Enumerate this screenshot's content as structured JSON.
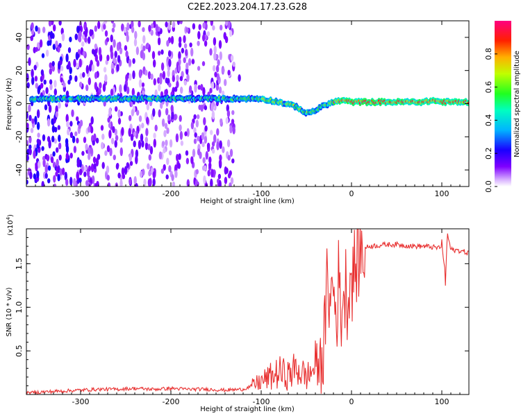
{
  "title": "C2E2.2023.204.17.23.G28",
  "chart_data": [
    {
      "type": "heatmap",
      "xlabel": "Height of straight line (km)",
      "ylabel": "Frequency (Hz)",
      "xlim": [
        -360,
        130
      ],
      "ylim": [
        -50,
        50
      ],
      "x_ticks": [
        -300,
        -200,
        -100,
        0,
        100
      ],
      "y_ticks": [
        -40,
        -20,
        0,
        20,
        40
      ],
      "colorbar": {
        "label": "Normalized spectral amplitude",
        "range": [
          0,
          1
        ],
        "ticks": [
          "0.0",
          "0.2",
          "0.4",
          "0.6",
          "0.8"
        ],
        "colors": [
          "#ffffff",
          "#7f00ff",
          "#0000ff",
          "#00c8ff",
          "#00ff80",
          "#80ff00",
          "#ffd000",
          "#ff0000",
          "#ff0080"
        ]
      },
      "ridge": {
        "x": [
          -360,
          -300,
          -200,
          -130,
          -100,
          -80,
          -60,
          -50,
          -40,
          -30,
          -20,
          -10,
          0,
          20,
          40,
          60,
          80,
          90,
          100,
          130
        ],
        "frequency": [
          3,
          3,
          3,
          3,
          3,
          1,
          -2,
          -6,
          -4,
          -1,
          1,
          2,
          1,
          1,
          1,
          1,
          1,
          2,
          1,
          1
        ]
      }
    },
    {
      "type": "line",
      "xlabel": "Height of straight line (km)",
      "ylabel": "SNR (10 * v/v)",
      "multiplier": "(x10",
      "multiplier_exp": "4",
      "multiplier_close": ")",
      "xlim": [
        -360,
        130
      ],
      "ylim": [
        0,
        1.9
      ],
      "x_ticks": [
        -300,
        -200,
        -100,
        0,
        100
      ],
      "y_ticks": [
        "0.5",
        "1.0",
        "1.5"
      ],
      "series": [
        {
          "color": "#e83030",
          "x": [
            -360,
            -340,
            -320,
            -300,
            -280,
            -260,
            -240,
            -220,
            -200,
            -180,
            -160,
            -140,
            -120,
            -110,
            -100,
            -90,
            -80,
            -70,
            -60,
            -50,
            -45,
            -40,
            -35,
            -30,
            -28,
            -26,
            -24,
            -22,
            -20,
            -18,
            -16,
            -14,
            -12,
            -10,
            -8,
            -6,
            -4,
            -2,
            0,
            5,
            10,
            15,
            20,
            30,
            40,
            50,
            60,
            70,
            80,
            90,
            95,
            100,
            102,
            104,
            106,
            110,
            120,
            130
          ],
          "y": [
            0.02,
            0.03,
            0.04,
            0.05,
            0.06,
            0.06,
            0.07,
            0.06,
            0.07,
            0.06,
            0.06,
            0.05,
            0.06,
            0.1,
            0.15,
            0.2,
            0.25,
            0.22,
            0.3,
            0.2,
            0.25,
            0.35,
            0.3,
            0.6,
            1.0,
            1.5,
            0.9,
            1.2,
            1.3,
            0.9,
            1.0,
            1.4,
            0.8,
            1.2,
            1.1,
            1.3,
            1.0,
            1.4,
            1.3,
            1.5,
            1.62,
            1.68,
            1.7,
            1.71,
            1.72,
            1.72,
            1.71,
            1.7,
            1.7,
            1.69,
            1.68,
            1.7,
            1.6,
            1.25,
            1.85,
            1.66,
            1.65,
            1.62
          ]
        }
      ]
    }
  ]
}
